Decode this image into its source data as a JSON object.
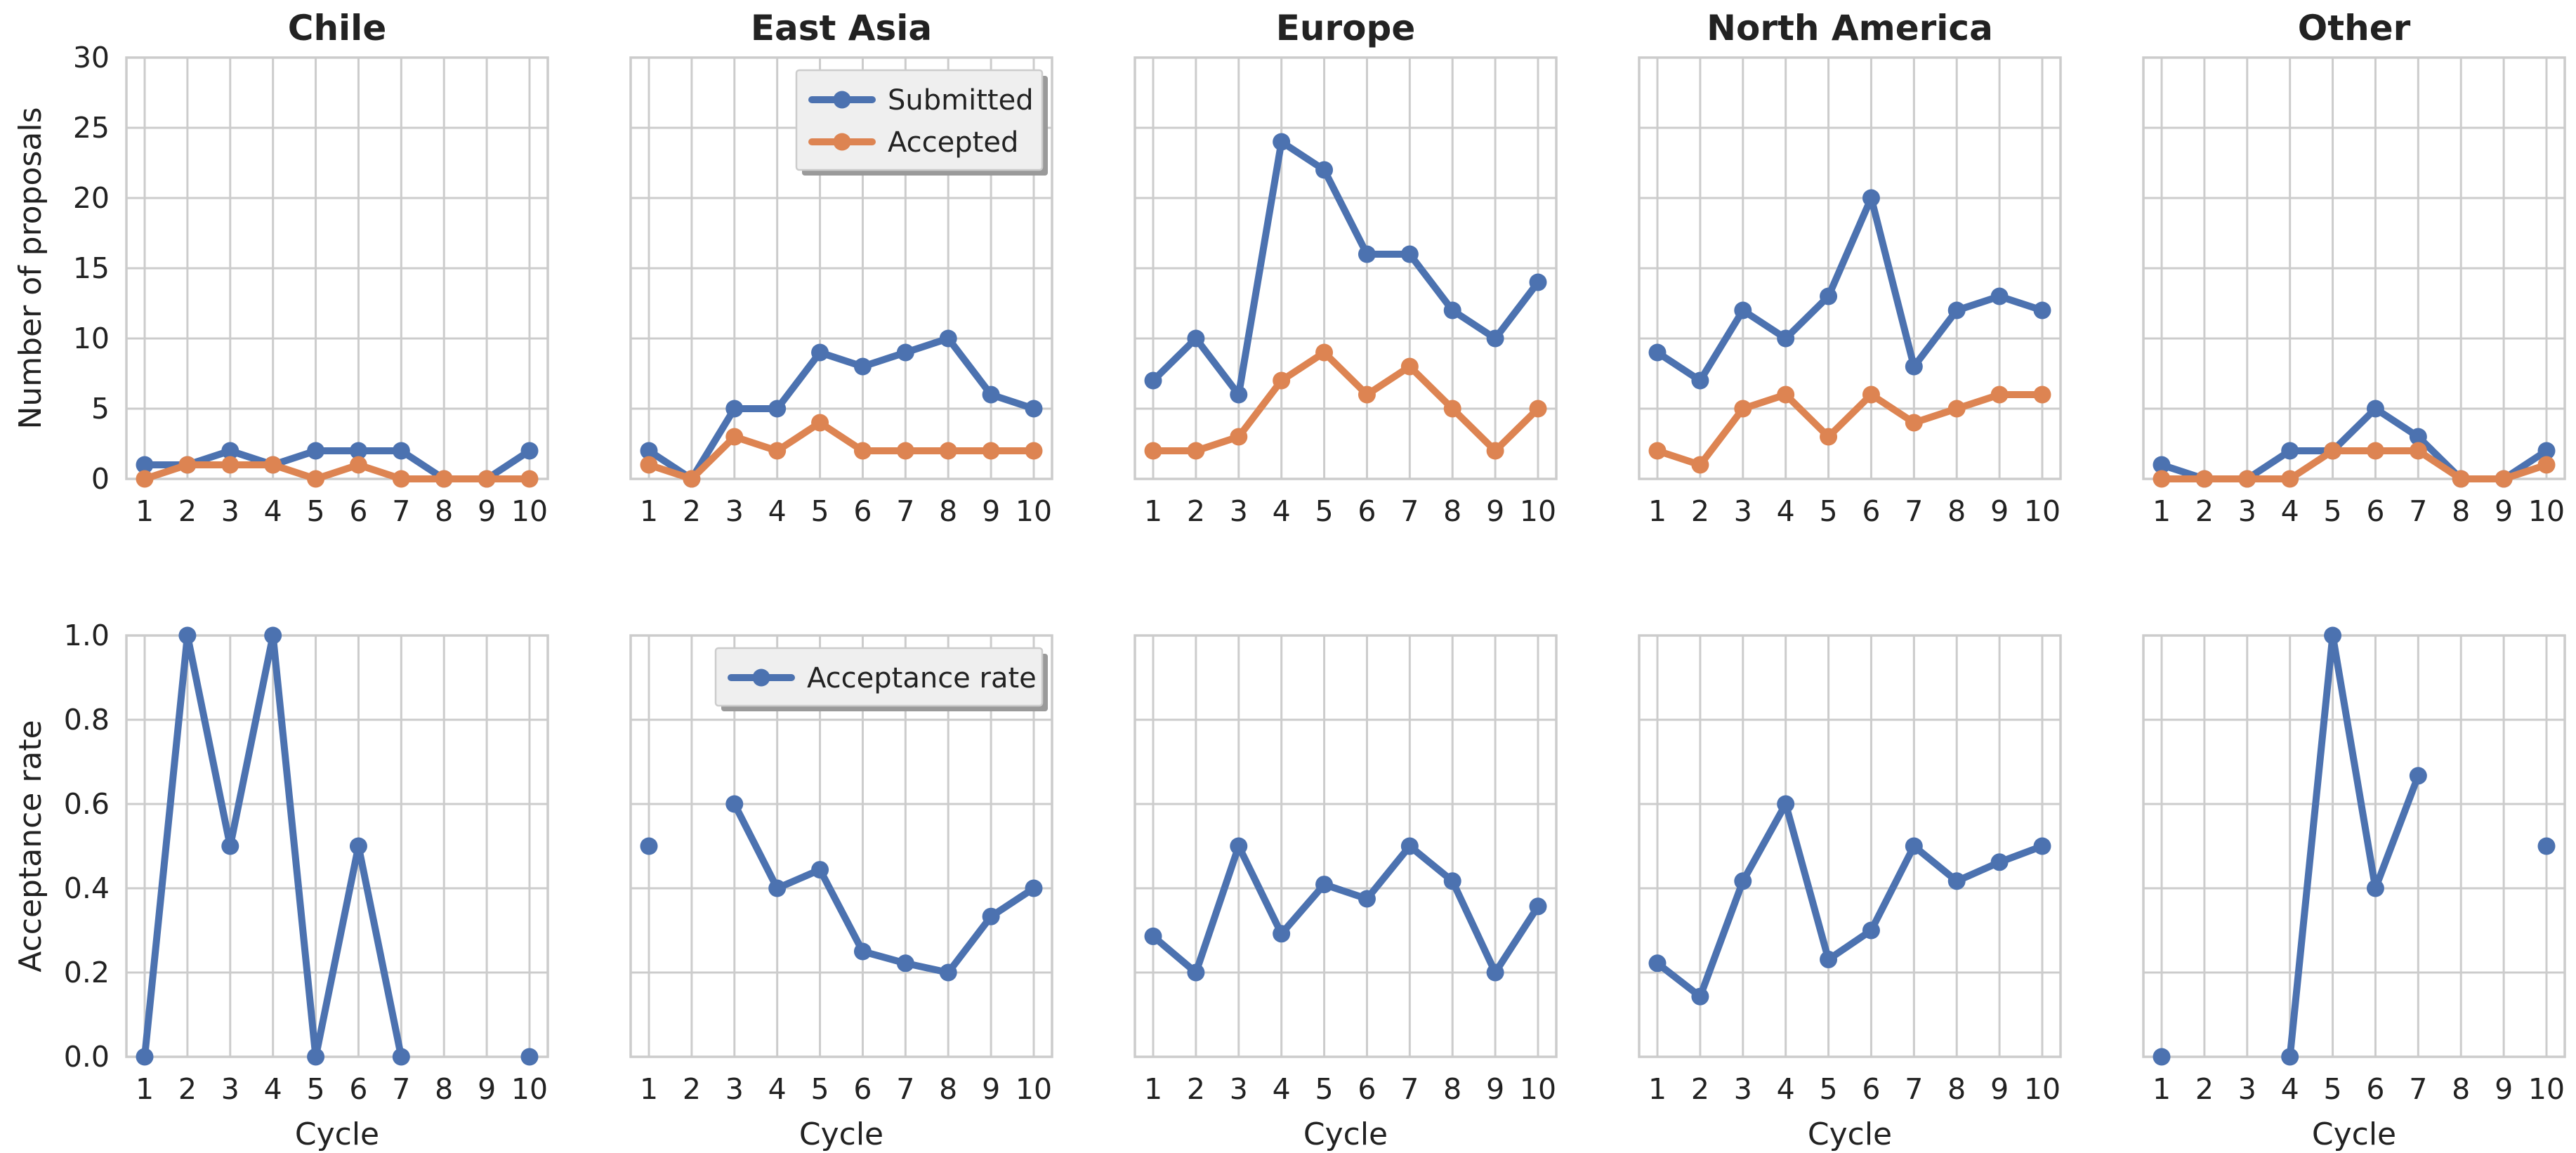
{
  "chart_data": [
    {
      "type": "line",
      "title": "Chile",
      "xlabel": "",
      "ylabel": "Number of proposals",
      "x": [
        1,
        2,
        3,
        4,
        5,
        6,
        7,
        8,
        9,
        10
      ],
      "ylim": [
        0,
        30
      ],
      "yticks": [
        0,
        5,
        10,
        15,
        20,
        25,
        30
      ],
      "grid": true,
      "legend": "none",
      "series": [
        {
          "name": "Submitted",
          "color": "#4c72b0",
          "values": [
            1,
            1,
            2,
            1,
            2,
            2,
            2,
            0,
            0,
            2
          ]
        },
        {
          "name": "Accepted",
          "color": "#dd8452",
          "values": [
            0,
            1,
            1,
            1,
            0,
            1,
            0,
            0,
            0,
            0
          ]
        }
      ]
    },
    {
      "type": "line",
      "title": "East Asia",
      "xlabel": "",
      "ylabel": "",
      "x": [
        1,
        2,
        3,
        4,
        5,
        6,
        7,
        8,
        9,
        10
      ],
      "ylim": [
        0,
        30
      ],
      "yticks": [
        0,
        5,
        10,
        15,
        20,
        25,
        30
      ],
      "grid": true,
      "legend": "upper right",
      "series": [
        {
          "name": "Submitted",
          "color": "#4c72b0",
          "values": [
            2,
            0,
            5,
            5,
            9,
            8,
            9,
            10,
            6,
            5
          ]
        },
        {
          "name": "Accepted",
          "color": "#dd8452",
          "values": [
            1,
            0,
            3,
            2,
            4,
            2,
            2,
            2,
            2,
            2
          ]
        }
      ]
    },
    {
      "type": "line",
      "title": "Europe",
      "xlabel": "",
      "ylabel": "",
      "x": [
        1,
        2,
        3,
        4,
        5,
        6,
        7,
        8,
        9,
        10
      ],
      "ylim": [
        0,
        30
      ],
      "yticks": [
        0,
        5,
        10,
        15,
        20,
        25,
        30
      ],
      "grid": true,
      "legend": "none",
      "series": [
        {
          "name": "Submitted",
          "color": "#4c72b0",
          "values": [
            7,
            10,
            6,
            24,
            22,
            16,
            16,
            12,
            10,
            14
          ]
        },
        {
          "name": "Accepted",
          "color": "#dd8452",
          "values": [
            2,
            2,
            3,
            7,
            9,
            6,
            8,
            5,
            2,
            5
          ]
        }
      ]
    },
    {
      "type": "line",
      "title": "North America",
      "xlabel": "",
      "ylabel": "",
      "x": [
        1,
        2,
        3,
        4,
        5,
        6,
        7,
        8,
        9,
        10
      ],
      "ylim": [
        0,
        30
      ],
      "yticks": [
        0,
        5,
        10,
        15,
        20,
        25,
        30
      ],
      "grid": true,
      "legend": "none",
      "series": [
        {
          "name": "Submitted",
          "color": "#4c72b0",
          "values": [
            9,
            7,
            12,
            10,
            13,
            20,
            8,
            12,
            13,
            12
          ]
        },
        {
          "name": "Accepted",
          "color": "#dd8452",
          "values": [
            2,
            1,
            5,
            6,
            3,
            6,
            4,
            5,
            6,
            6
          ]
        }
      ]
    },
    {
      "type": "line",
      "title": "Other",
      "xlabel": "",
      "ylabel": "",
      "x": [
        1,
        2,
        3,
        4,
        5,
        6,
        7,
        8,
        9,
        10
      ],
      "ylim": [
        0,
        30
      ],
      "yticks": [
        0,
        5,
        10,
        15,
        20,
        25,
        30
      ],
      "grid": true,
      "legend": "none",
      "series": [
        {
          "name": "Submitted",
          "color": "#4c72b0",
          "values": [
            1,
            0,
            0,
            2,
            2,
            5,
            3,
            0,
            0,
            2
          ]
        },
        {
          "name": "Accepted",
          "color": "#dd8452",
          "values": [
            0,
            0,
            0,
            0,
            2,
            2,
            2,
            0,
            0,
            1
          ]
        }
      ]
    },
    {
      "type": "line",
      "title": "",
      "xlabel": "Cycle",
      "ylabel": "Acceptance rate",
      "x": [
        1,
        2,
        3,
        4,
        5,
        6,
        7,
        8,
        9,
        10
      ],
      "ylim": [
        0,
        1
      ],
      "yticks": [
        "0.0",
        "0.2",
        "0.4",
        "0.6",
        "0.8",
        "1.0"
      ],
      "grid": true,
      "legend": "none",
      "series": [
        {
          "name": "Acceptance rate",
          "color": "#4c72b0",
          "values": [
            0.0,
            1.0,
            0.5,
            1.0,
            0.0,
            0.5,
            0.0,
            null,
            null,
            0.0
          ]
        }
      ]
    },
    {
      "type": "line",
      "title": "",
      "xlabel": "Cycle",
      "ylabel": "",
      "x": [
        1,
        2,
        3,
        4,
        5,
        6,
        7,
        8,
        9,
        10
      ],
      "ylim": [
        0,
        1
      ],
      "yticks": [
        "0.0",
        "0.2",
        "0.4",
        "0.6",
        "0.8",
        "1.0"
      ],
      "grid": true,
      "legend": "upper right",
      "series": [
        {
          "name": "Acceptance rate",
          "color": "#4c72b0",
          "values": [
            0.5,
            null,
            0.6,
            0.4,
            0.444,
            0.25,
            0.222,
            0.2,
            0.333,
            0.4
          ]
        }
      ]
    },
    {
      "type": "line",
      "title": "",
      "xlabel": "Cycle",
      "ylabel": "",
      "x": [
        1,
        2,
        3,
        4,
        5,
        6,
        7,
        8,
        9,
        10
      ],
      "ylim": [
        0,
        1
      ],
      "yticks": [
        "0.0",
        "0.2",
        "0.4",
        "0.6",
        "0.8",
        "1.0"
      ],
      "grid": true,
      "legend": "none",
      "series": [
        {
          "name": "Acceptance rate",
          "color": "#4c72b0",
          "values": [
            0.286,
            0.2,
            0.5,
            0.292,
            0.409,
            0.375,
            0.5,
            0.417,
            0.2,
            0.357
          ]
        }
      ]
    },
    {
      "type": "line",
      "title": "",
      "xlabel": "Cycle",
      "ylabel": "",
      "x": [
        1,
        2,
        3,
        4,
        5,
        6,
        7,
        8,
        9,
        10
      ],
      "ylim": [
        0,
        1
      ],
      "yticks": [
        "0.0",
        "0.2",
        "0.4",
        "0.6",
        "0.8",
        "1.0"
      ],
      "grid": true,
      "legend": "none",
      "series": [
        {
          "name": "Acceptance rate",
          "color": "#4c72b0",
          "values": [
            0.222,
            0.143,
            0.417,
            0.6,
            0.231,
            0.3,
            0.5,
            0.417,
            0.462,
            0.5
          ]
        }
      ]
    },
    {
      "type": "line",
      "title": "",
      "xlabel": "Cycle",
      "ylabel": "",
      "x": [
        1,
        2,
        3,
        4,
        5,
        6,
        7,
        8,
        9,
        10
      ],
      "ylim": [
        0,
        1
      ],
      "yticks": [
        "0.0",
        "0.2",
        "0.4",
        "0.6",
        "0.8",
        "1.0"
      ],
      "grid": true,
      "legend": "none",
      "series": [
        {
          "name": "Acceptance rate",
          "color": "#4c72b0",
          "values": [
            0.0,
            null,
            null,
            0.0,
            1.0,
            0.4,
            0.667,
            null,
            null,
            0.5
          ]
        }
      ]
    }
  ]
}
